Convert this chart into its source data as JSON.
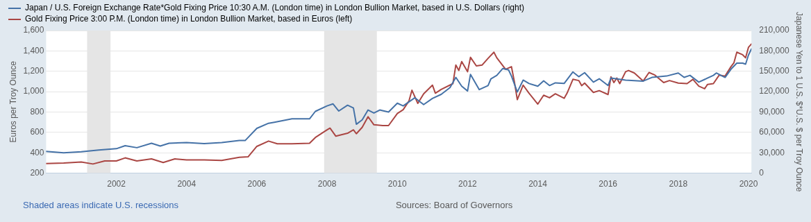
{
  "chart_data": {
    "type": "line",
    "xlabel": null,
    "ylabel": "Euros per Troy Ounce",
    "y2label": "Japanese Yen to 1 U.S. $*U.S. $ per Troy Ounce",
    "xlim": [
      "2000-01",
      "2020-02"
    ],
    "xticks": [
      "2002",
      "2004",
      "2006",
      "2008",
      "2010",
      "2012",
      "2014",
      "2016",
      "2018",
      "2020"
    ],
    "ylim": [
      200,
      1600
    ],
    "yticks": [
      200,
      400,
      600,
      800,
      {
        "value": 1000,
        "label": "1,000"
      },
      {
        "value": 1200,
        "label": "1,200"
      },
      {
        "value": 1400,
        "label": "1,400"
      },
      {
        "value": 1600,
        "label": "1,600"
      }
    ],
    "y2lim": [
      0,
      210000
    ],
    "y2ticks": [
      0,
      {
        "value": 30000,
        "label": "30,000"
      },
      {
        "value": 60000,
        "label": "60,000"
      },
      {
        "value": 90000,
        "label": "90,000"
      },
      {
        "value": 120000,
        "label": "120,000"
      },
      {
        "value": 150000,
        "label": "150,000"
      },
      {
        "value": 180000,
        "label": "180,000"
      },
      {
        "value": 210000,
        "label": "210,000"
      }
    ],
    "grid": "y",
    "legend": "top left",
    "marker": "none",
    "line_style": "solid",
    "bands": [
      {
        "axis": "x",
        "from": "2001-03",
        "to": "2001-11",
        "color": "#e5e5e5"
      },
      {
        "axis": "x",
        "from": "2007-12",
        "to": "2009-06",
        "color": "#e5e5e5"
      }
    ],
    "annotations": [
      "Shaded areas indicate U.S. recessions",
      "Sources: Board of Governors"
    ],
    "series": [
      {
        "name": "Japan / U.S. Foreign Exchange Rate*Gold Fixing Price 10:30 A.M. (London time) in London Bullion Market, based in U.S. Dollars (right)",
        "color": "#4572a7",
        "axis": "y2",
        "x": [
          "2000-01",
          "2000-07",
          "2001-01",
          "2001-07",
          "2002-01",
          "2002-04",
          "2002-08",
          "2003-01",
          "2003-04",
          "2003-07",
          "2004-01",
          "2004-07",
          "2005-01",
          "2005-07",
          "2005-09",
          "2006-01",
          "2006-05",
          "2006-07",
          "2007-01",
          "2007-07",
          "2007-09",
          "2008-01",
          "2008-03",
          "2008-05",
          "2008-08",
          "2008-10",
          "2008-11",
          "2009-01",
          "2009-03",
          "2009-05",
          "2009-07",
          "2009-10",
          "2010-01",
          "2010-03",
          "2010-07",
          "2010-10",
          "2011-01",
          "2011-04",
          "2011-07",
          "2011-09",
          "2011-11",
          "2012-01",
          "2012-02",
          "2012-05",
          "2012-08",
          "2012-09",
          "2012-11",
          "2013-01",
          "2013-03",
          "2013-04",
          "2013-06",
          "2013-08",
          "2013-10",
          "2014-01",
          "2014-03",
          "2014-05",
          "2014-07",
          "2014-10",
          "2015-01",
          "2015-03",
          "2015-05",
          "2015-08",
          "2015-10",
          "2016-01",
          "2016-02",
          "2016-07",
          "2017-01",
          "2017-04",
          "2017-09",
          "2018-01",
          "2018-03",
          "2018-05",
          "2018-08",
          "2018-10",
          "2019-01",
          "2019-02",
          "2019-04",
          "2019-05",
          "2019-07",
          "2019-09",
          "2019-11",
          "2019-12",
          "2020-01",
          "2020-02"
        ],
        "values": [
          32000,
          30000,
          31500,
          34000,
          36000,
          40500,
          37500,
          44000,
          40000,
          44000,
          45000,
          43500,
          45000,
          48000,
          48000,
          66000,
          73500,
          75000,
          80000,
          80000,
          91000,
          99000,
          102000,
          91500,
          100000,
          96000,
          72000,
          78500,
          93000,
          88500,
          93000,
          90000,
          103000,
          99000,
          111000,
          101000,
          110000,
          116000,
          126000,
          141000,
          128000,
          121000,
          145500,
          123000,
          129000,
          139000,
          144000,
          154000,
          152000,
          143000,
          119500,
          137000,
          132000,
          128000,
          136000,
          129000,
          133000,
          132000,
          149000,
          142000,
          148000,
          134000,
          139000,
          129000,
          140000,
          137000,
          135500,
          141000,
          143000,
          147500,
          141000,
          144000,
          134000,
          138000,
          144000,
          147500,
          143000,
          141000,
          153000,
          162000,
          162000,
          160500,
          174000,
          183000
        ]
      },
      {
        "name": "Gold Fixing Price 3:00 P.M. (London time) in London Bullion Market, based in Euros (left)",
        "color": "#aa4643",
        "axis": "y",
        "x": [
          "2000-01",
          "2000-07",
          "2001-01",
          "2001-05",
          "2001-09",
          "2002-01",
          "2002-04",
          "2002-08",
          "2003-01",
          "2003-05",
          "2003-09",
          "2004-01",
          "2004-07",
          "2005-01",
          "2005-07",
          "2005-10",
          "2006-01",
          "2006-05",
          "2006-08",
          "2007-01",
          "2007-07",
          "2007-09",
          "2008-01",
          "2008-02",
          "2008-04",
          "2008-08",
          "2008-10",
          "2008-11",
          "2009-01",
          "2009-03",
          "2009-05",
          "2009-08",
          "2009-10",
          "2010-01",
          "2010-03",
          "2010-05",
          "2010-06",
          "2010-08",
          "2010-10",
          "2011-01",
          "2011-02",
          "2011-04",
          "2011-08",
          "2011-09",
          "2011-10",
          "2011-11",
          "2012-01",
          "2012-02",
          "2012-04",
          "2012-06",
          "2012-08",
          "2012-10",
          "2012-11",
          "2013-02",
          "2013-04",
          "2013-05",
          "2013-06",
          "2013-08",
          "2013-10",
          "2014-01",
          "2014-03",
          "2014-05",
          "2014-07",
          "2014-10",
          "2014-11",
          "2015-01",
          "2015-03",
          "2015-04",
          "2015-05",
          "2015-08",
          "2015-10",
          "2016-01",
          "2016-02",
          "2016-03",
          "2016-04",
          "2016-05",
          "2016-07",
          "2016-08",
          "2016-10",
          "2017-01",
          "2017-03",
          "2017-05",
          "2017-08",
          "2017-10",
          "2018-01",
          "2018-04",
          "2018-06",
          "2018-08",
          "2018-10",
          "2018-11",
          "2019-01",
          "2019-03",
          "2019-05",
          "2019-07",
          "2019-08",
          "2019-09",
          "2019-11",
          "2019-12",
          "2020-01",
          "2020-02"
        ],
        "values": [
          295,
          300,
          310,
          290,
          320,
          320,
          350,
          320,
          340,
          305,
          340,
          330,
          330,
          325,
          355,
          360,
          463,
          515,
          488,
          488,
          493,
          550,
          625,
          642,
          563,
          592,
          625,
          587,
          650,
          754,
          675,
          667,
          667,
          786,
          823,
          910,
          1014,
          885,
          979,
          1064,
          985,
          1022,
          1079,
          1262,
          1208,
          1295,
          1196,
          1337,
          1253,
          1262,
          1327,
          1387,
          1332,
          1220,
          1245,
          1096,
          922,
          1064,
          985,
          878,
          965,
          940,
          979,
          935,
          985,
          1121,
          1109,
          1059,
          1084,
          992,
          1010,
          972,
          1146,
          1089,
          1134,
          1079,
          1196,
          1208,
          1183,
          1104,
          1188,
          1163,
          1089,
          1109,
          1084,
          1079,
          1121,
          1054,
          1029,
          1071,
          1079,
          1163,
          1153,
          1245,
          1282,
          1387,
          1362,
          1332,
          1436,
          1468
        ]
      }
    ]
  }
}
